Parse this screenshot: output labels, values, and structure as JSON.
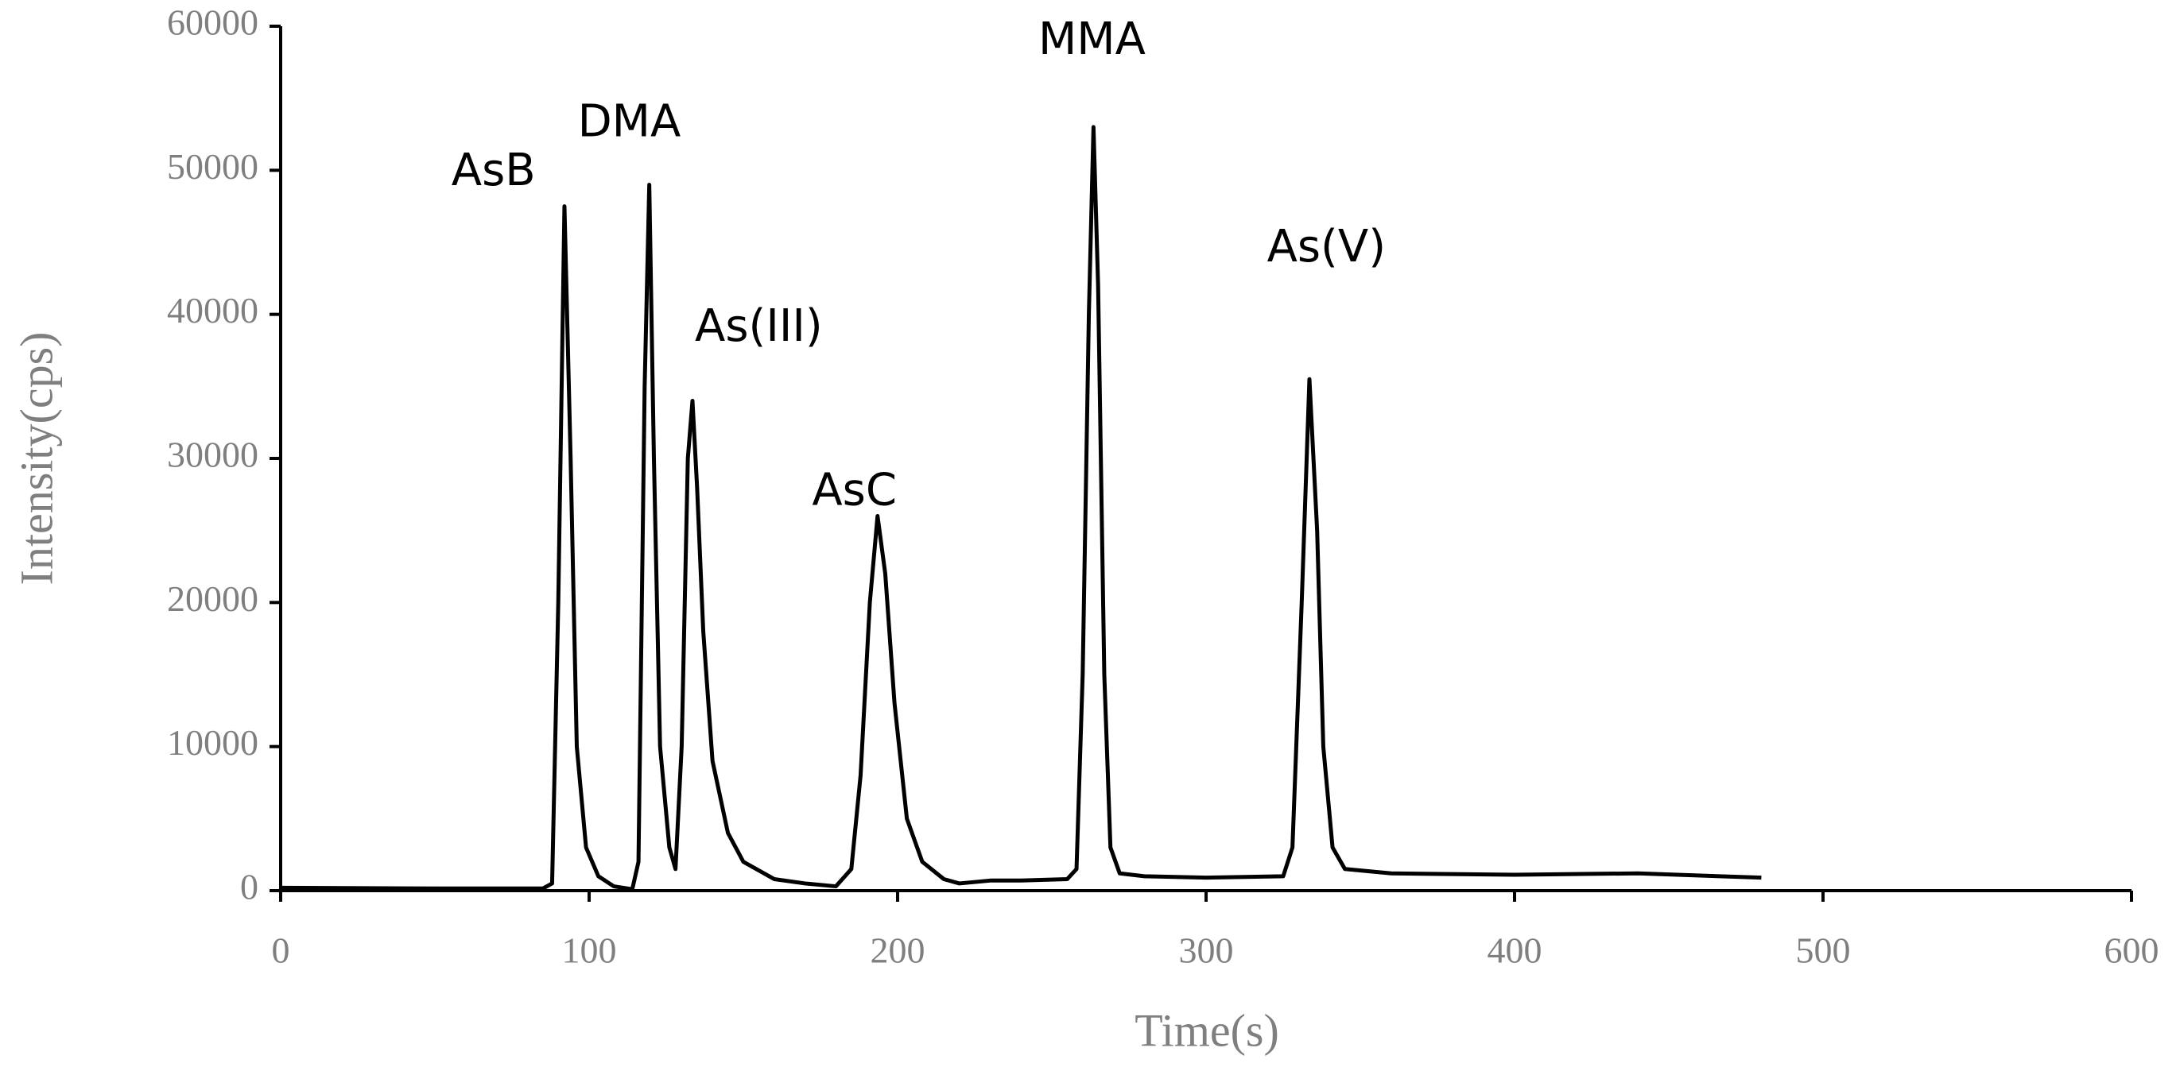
{
  "chart_data": {
    "type": "line",
    "x_label": "Time(s)",
    "y_label": "Intensity(cps)",
    "xlim": [
      0,
      600
    ],
    "ylim": [
      0,
      60000
    ],
    "xticks": [
      0,
      100,
      200,
      300,
      400,
      500,
      600
    ],
    "yticks": [
      0,
      10000,
      20000,
      30000,
      40000,
      50000,
      60000
    ],
    "grid": false,
    "series": [
      {
        "color": "#000000",
        "x": [
          0,
          50,
          85,
          88,
          90,
          92,
          94,
          96,
          99,
          103,
          108,
          114,
          116,
          118,
          119.5,
          121,
          123,
          126,
          128,
          130,
          132,
          133.5,
          135,
          137,
          140,
          145,
          150,
          160,
          170,
          180,
          185,
          188,
          191,
          193.5,
          196,
          199,
          203,
          208,
          215,
          220,
          230,
          240,
          255,
          258,
          260,
          262,
          263.5,
          265,
          267,
          269,
          272,
          280,
          300,
          325,
          328,
          331,
          333.5,
          336,
          338,
          341,
          345,
          360,
          400,
          440,
          480
        ],
        "values": [
          200,
          150,
          150,
          500,
          20000,
          47500,
          30000,
          10000,
          3000,
          1000,
          300,
          100,
          2000,
          35000,
          49000,
          30000,
          10000,
          3000,
          1500,
          10000,
          30000,
          34000,
          28000,
          18000,
          9000,
          4000,
          2000,
          800,
          500,
          300,
          1500,
          8000,
          20000,
          26000,
          22000,
          13000,
          5000,
          2000,
          800,
          500,
          700,
          700,
          800,
          1500,
          15000,
          40000,
          53000,
          42000,
          15000,
          3000,
          1200,
          1000,
          900,
          1000,
          3000,
          20000,
          35500,
          25000,
          10000,
          3000,
          1500,
          1200,
          1100,
          1200,
          900
        ]
      }
    ],
    "annotations": [
      {
        "text": "AsB",
        "x": 69,
        "y": 49800
      },
      {
        "text": "DMA",
        "x": 113,
        "y": 53200
      },
      {
        "text": "As(III)",
        "x": 155,
        "y": 39000
      },
      {
        "text": "AsC",
        "x": 186,
        "y": 27600
      },
      {
        "text": "MMA",
        "x": 263,
        "y": 58900
      },
      {
        "text": "As(V)",
        "x": 339,
        "y": 44500
      }
    ]
  }
}
